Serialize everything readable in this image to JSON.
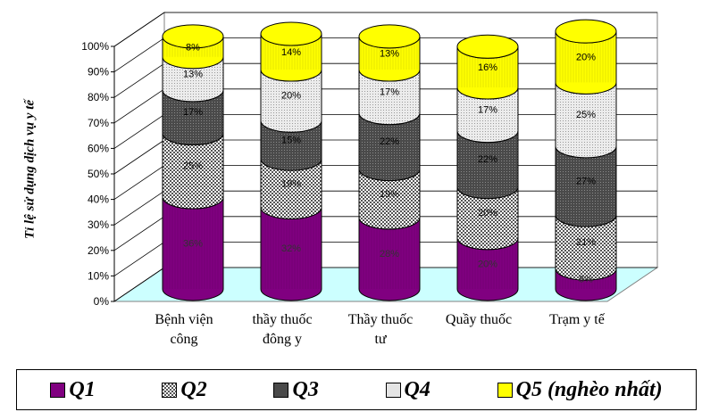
{
  "chart_data": {
    "type": "bar",
    "stacked": true,
    "three_d": true,
    "ylabel": "Tỉ lệ sử dụng dịch vụ y tế",
    "ylim": [
      0,
      100
    ],
    "yticks": [
      "0%",
      "10%",
      "20%",
      "30%",
      "40%",
      "50%",
      "60%",
      "70%",
      "80%",
      "90%",
      "100%"
    ],
    "categories": [
      [
        "Bệnh viện",
        "công"
      ],
      [
        "thầy thuốc",
        "đông y"
      ],
      [
        "Thầy thuốc",
        "tư"
      ],
      [
        "Quầy thuốc",
        ""
      ],
      [
        "Trạm y tế",
        ""
      ]
    ],
    "series": [
      {
        "name": "Q1",
        "color": "#800080",
        "pattern": "vertical-lines",
        "values": [
          36,
          32,
          28,
          20,
          8
        ],
        "labels": [
          "36%",
          "32%",
          "28%",
          "20%",
          "8%"
        ]
      },
      {
        "name": "Q2",
        "color": "#d8d8d8",
        "pattern": "checker",
        "values": [
          25,
          19,
          19,
          20,
          21
        ],
        "labels": [
          "25%",
          "19%",
          "19%",
          "20%",
          "21%"
        ]
      },
      {
        "name": "Q3",
        "color": "#505050",
        "pattern": "dots",
        "values": [
          17,
          15,
          22,
          22,
          27
        ],
        "labels": [
          "17%",
          "15%",
          "22%",
          "22%",
          "27%"
        ]
      },
      {
        "name": "Q4",
        "color": "#e4e4e4",
        "pattern": "light-dots",
        "values": [
          13,
          20,
          17,
          17,
          25
        ],
        "labels": [
          "13%",
          "20%",
          "17%",
          "17%",
          "25%"
        ]
      },
      {
        "name": "Q5 (nghèo nhất)",
        "color": "#ffff00",
        "pattern": "vertical-lines",
        "values": [
          8,
          14,
          13,
          16,
          20
        ],
        "labels": [
          "8%",
          "14%",
          "13%",
          "16%",
          "20%"
        ]
      }
    ],
    "floor_color": "#ccffff",
    "grid": true,
    "legend_position": "bottom"
  }
}
